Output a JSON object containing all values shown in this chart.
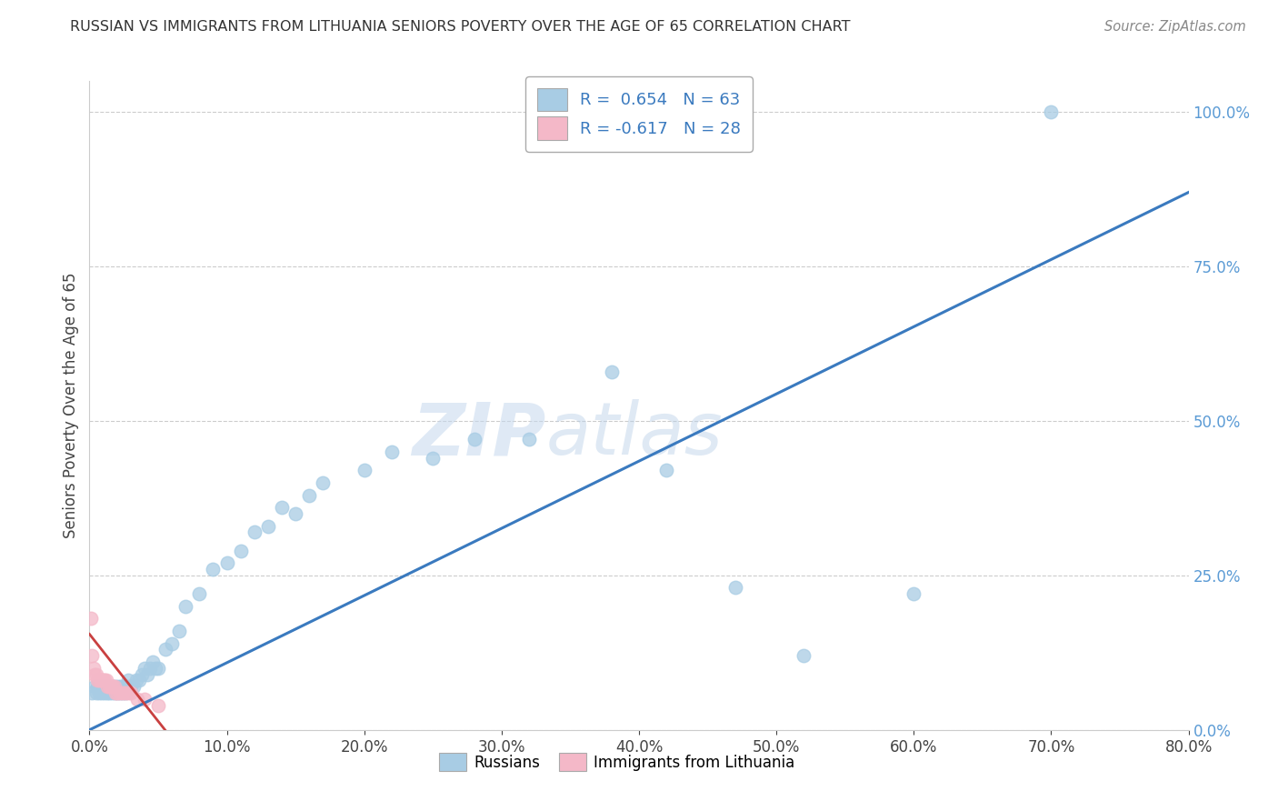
{
  "title": "RUSSIAN VS IMMIGRANTS FROM LITHUANIA SENIORS POVERTY OVER THE AGE OF 65 CORRELATION CHART",
  "source": "Source: ZipAtlas.com",
  "ylabel_label": "Seniors Poverty Over the Age of 65",
  "legend_label1": "Russians",
  "legend_label2": "Immigrants from Lithuania",
  "R1": 0.654,
  "N1": 63,
  "R2": -0.617,
  "N2": 28,
  "color_blue": "#a8cce4",
  "color_pink": "#f4b8c8",
  "color_line_blue": "#3a7abf",
  "color_line_pink": "#c94040",
  "watermark_zip": "ZIP",
  "watermark_atlas": "atlas",
  "background_color": "#ffffff",
  "russians_x": [
    0.002,
    0.004,
    0.005,
    0.006,
    0.007,
    0.008,
    0.009,
    0.01,
    0.011,
    0.012,
    0.013,
    0.014,
    0.015,
    0.016,
    0.017,
    0.018,
    0.019,
    0.02,
    0.021,
    0.022,
    0.023,
    0.024,
    0.025,
    0.026,
    0.027,
    0.028,
    0.029,
    0.03,
    0.032,
    0.034,
    0.036,
    0.038,
    0.04,
    0.042,
    0.044,
    0.046,
    0.048,
    0.05,
    0.055,
    0.06,
    0.065,
    0.07,
    0.08,
    0.09,
    0.1,
    0.11,
    0.12,
    0.13,
    0.14,
    0.15,
    0.16,
    0.17,
    0.2,
    0.22,
    0.25,
    0.28,
    0.32,
    0.38,
    0.42,
    0.47,
    0.52,
    0.6,
    0.7
  ],
  "russians_y": [
    0.06,
    0.07,
    0.06,
    0.07,
    0.06,
    0.07,
    0.06,
    0.07,
    0.06,
    0.07,
    0.06,
    0.06,
    0.07,
    0.06,
    0.07,
    0.06,
    0.07,
    0.06,
    0.07,
    0.06,
    0.07,
    0.06,
    0.07,
    0.06,
    0.07,
    0.08,
    0.07,
    0.07,
    0.07,
    0.08,
    0.08,
    0.09,
    0.1,
    0.09,
    0.1,
    0.11,
    0.1,
    0.1,
    0.13,
    0.14,
    0.16,
    0.2,
    0.22,
    0.26,
    0.27,
    0.29,
    0.32,
    0.33,
    0.36,
    0.35,
    0.38,
    0.4,
    0.42,
    0.45,
    0.44,
    0.47,
    0.47,
    0.58,
    0.42,
    0.23,
    0.12,
    0.22,
    1.0
  ],
  "lithuania_x": [
    0.001,
    0.002,
    0.003,
    0.004,
    0.005,
    0.006,
    0.007,
    0.008,
    0.009,
    0.01,
    0.011,
    0.012,
    0.013,
    0.014,
    0.015,
    0.016,
    0.017,
    0.018,
    0.019,
    0.02,
    0.022,
    0.024,
    0.026,
    0.028,
    0.03,
    0.035,
    0.04,
    0.05
  ],
  "lithuania_y": [
    0.18,
    0.12,
    0.1,
    0.09,
    0.09,
    0.08,
    0.08,
    0.08,
    0.08,
    0.08,
    0.08,
    0.08,
    0.07,
    0.07,
    0.07,
    0.07,
    0.07,
    0.07,
    0.06,
    0.06,
    0.06,
    0.06,
    0.06,
    0.06,
    0.06,
    0.05,
    0.05,
    0.04
  ],
  "ru_line_x": [
    0.0,
    0.8
  ],
  "ru_line_y": [
    0.0,
    0.87
  ],
  "li_line_x": [
    0.0,
    0.055
  ],
  "li_line_y": [
    0.155,
    0.0
  ],
  "xlim": [
    0.0,
    0.8
  ],
  "ylim": [
    0.0,
    1.05
  ],
  "xtick_step": 0.1,
  "ytick_step": 0.25
}
